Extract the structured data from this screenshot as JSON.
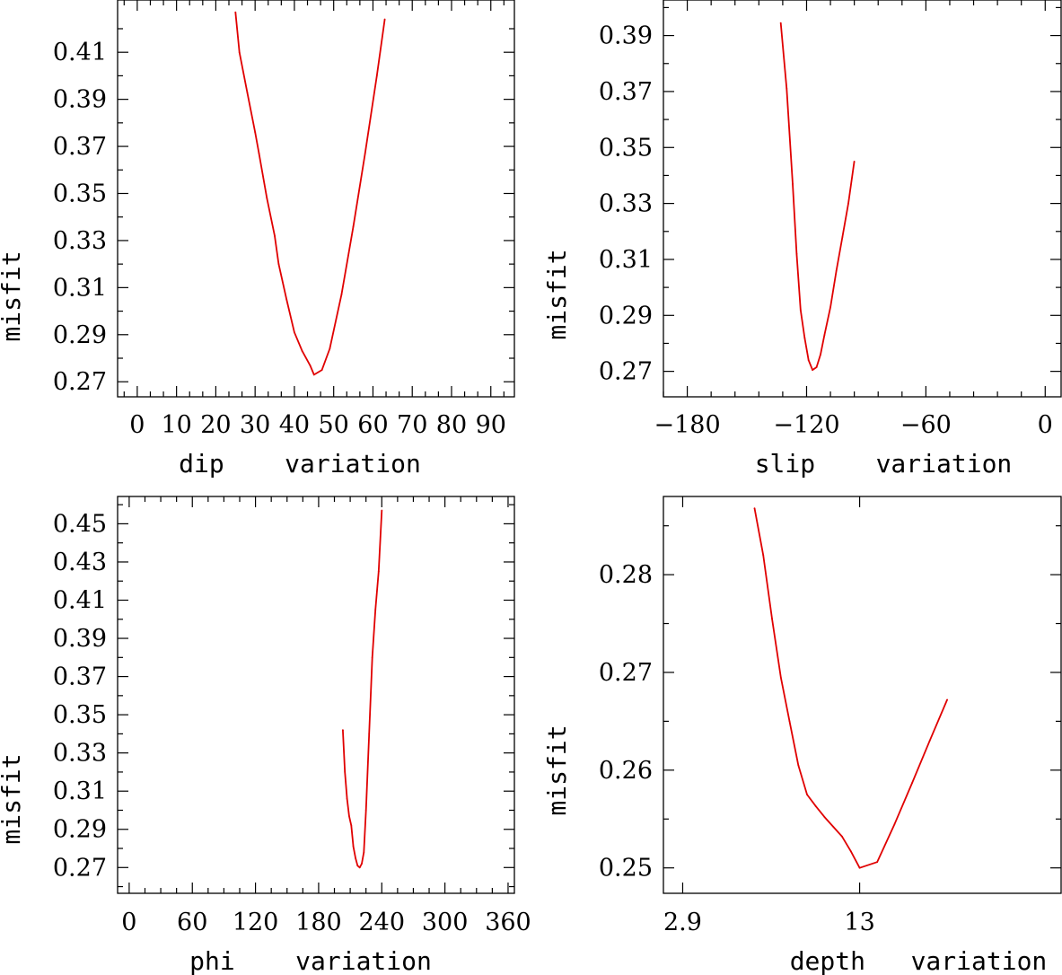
{
  "chart_data": [
    {
      "type": "line",
      "title": "",
      "xlabel": "dip    variation",
      "ylabel": "misfit",
      "xlim": [
        -5,
        96
      ],
      "ylim": [
        0.2636,
        0.4322
      ],
      "xticks": [
        0,
        10,
        20,
        30,
        40,
        50,
        60,
        70,
        80,
        90
      ],
      "xtick_labels": [
        "0",
        "10",
        "20",
        "30",
        "40",
        "50",
        "60",
        "70",
        "80",
        "90"
      ],
      "yticks": [
        0.27,
        0.29,
        0.31,
        0.33,
        0.35,
        0.37,
        0.39,
        0.41
      ],
      "ytick_labels": [
        "0.27",
        "0.29",
        "0.31",
        "0.33",
        "0.35",
        "0.37",
        "0.39",
        "0.41"
      ],
      "series": [
        {
          "name": "misfit",
          "color": "#e00000",
          "x": [
            25,
            26,
            28,
            30,
            31,
            33,
            35,
            36,
            38,
            40,
            42,
            44,
            45,
            47,
            49,
            52,
            55,
            58,
            61,
            63
          ],
          "y": [
            0.427,
            0.41,
            0.393,
            0.376,
            0.367,
            0.348,
            0.332,
            0.32,
            0.305,
            0.291,
            0.283,
            0.277,
            0.273,
            0.275,
            0.284,
            0.307,
            0.336,
            0.367,
            0.4,
            0.424
          ]
        }
      ]
    },
    {
      "type": "line",
      "title": "",
      "xlabel": "slip    variation",
      "ylabel": "misfit",
      "xlim": [
        -192,
        8
      ],
      "ylim": [
        0.2609,
        0.4027
      ],
      "xticks": [
        -180,
        -120,
        -60,
        0
      ],
      "xtick_labels": [
        "−180",
        "−120",
        "−60",
        "0"
      ],
      "yticks": [
        0.27,
        0.29,
        0.31,
        0.33,
        0.35,
        0.37,
        0.39
      ],
      "ytick_labels": [
        "0.27",
        "0.29",
        "0.31",
        "0.33",
        "0.35",
        "0.37",
        "0.39"
      ],
      "series": [
        {
          "name": "misfit",
          "color": "#e00000",
          "x": [
            -133,
            -130,
            -127,
            -125,
            -123,
            -121,
            -119,
            -117,
            -115,
            -113,
            -111,
            -108,
            -105,
            -102,
            -99,
            -96
          ],
          "y": [
            0.3945,
            0.371,
            0.337,
            0.312,
            0.292,
            0.282,
            0.274,
            0.2705,
            0.2715,
            0.276,
            0.283,
            0.293,
            0.306,
            0.318,
            0.33,
            0.345
          ]
        }
      ]
    },
    {
      "type": "line",
      "title": "",
      "xlabel": "phi    variation",
      "ylabel": "misfit",
      "xlim": [
        -11,
        366
      ],
      "ylim": [
        0.2565,
        0.4643
      ],
      "xticks": [
        0,
        60,
        120,
        180,
        240,
        300,
        360
      ],
      "xtick_labels": [
        "0",
        "60",
        "120",
        "180",
        "240",
        "300",
        "360"
      ],
      "yticks": [
        0.27,
        0.29,
        0.31,
        0.33,
        0.35,
        0.37,
        0.39,
        0.41,
        0.43,
        0.45
      ],
      "ytick_labels": [
        "0.27",
        "0.29",
        "0.31",
        "0.33",
        "0.35",
        "0.37",
        "0.39",
        "0.41",
        "0.43",
        "0.45"
      ],
      "series": [
        {
          "name": "misfit",
          "color": "#e00000",
          "x": [
            203,
            205,
            207,
            209,
            211,
            213,
            215,
            217,
            219,
            221,
            223,
            225,
            228,
            231,
            234,
            237,
            240
          ],
          "y": [
            0.342,
            0.32,
            0.306,
            0.297,
            0.292,
            0.281,
            0.275,
            0.271,
            0.27,
            0.272,
            0.278,
            0.3,
            0.34,
            0.38,
            0.405,
            0.425,
            0.457
          ]
        }
      ]
    },
    {
      "type": "line",
      "title": "",
      "xlabel": "depth   variation",
      "ylabel": "misfit",
      "xlim": [
        1.8,
        24.5
      ],
      "ylim": [
        0.2474,
        0.288
      ],
      "xticks": [
        2.9,
        13
      ],
      "xtick_labels": [
        "2.9",
        "13"
      ],
      "yticks": [
        0.25,
        0.26,
        0.27,
        0.28
      ],
      "ytick_labels": [
        "0.25",
        "0.26",
        "0.27",
        "0.28"
      ],
      "series": [
        {
          "name": "misfit",
          "color": "#e00000",
          "x": [
            7.0,
            7.5,
            8.0,
            8.5,
            9.0,
            9.5,
            10.0,
            10.5,
            11.0,
            11.5,
            12.0,
            12.5,
            13.0,
            14.0,
            15.0,
            16.0,
            17.0,
            18.0
          ],
          "y": [
            0.2868,
            0.282,
            0.2755,
            0.2695,
            0.265,
            0.2605,
            0.2575,
            0.2563,
            0.2552,
            0.2542,
            0.2532,
            0.2517,
            0.25,
            0.2506,
            0.2545,
            0.2587,
            0.263,
            0.2672
          ]
        }
      ]
    }
  ]
}
